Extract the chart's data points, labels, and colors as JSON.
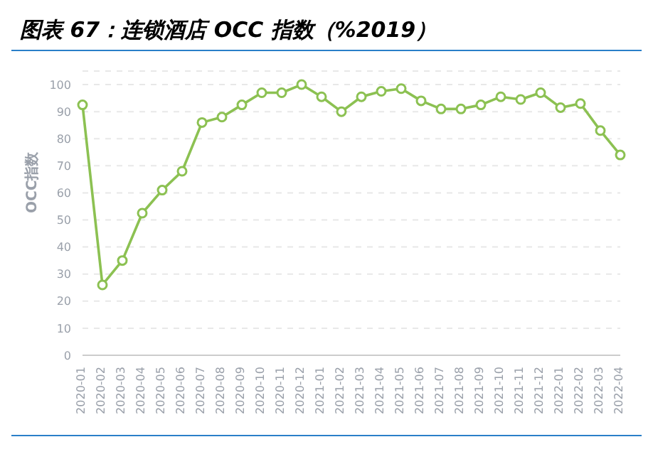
{
  "chart_data": {
    "type": "line",
    "title": "图表 67：连锁酒店 OCC 指数（%2019）",
    "ylabel": "OCC指数",
    "categories": [
      "2020-01",
      "2020-02",
      "2020-03",
      "2020-04",
      "2020-05",
      "2020-06",
      "2020-07",
      "2020-08",
      "2020-09",
      "2020-10",
      "2020-11",
      "2020-12",
      "2021-01",
      "2021-02",
      "2021-03",
      "2021-04",
      "2021-05",
      "2021-06",
      "2021-07",
      "2021-08",
      "2021-09",
      "2021-10",
      "2021-11",
      "2021-12",
      "2022-01",
      "2022-02",
      "2022-03",
      "2022-04"
    ],
    "series": [
      {
        "color": "#8cc152",
        "values": [
          92.5,
          26,
          35,
          52.5,
          61,
          68,
          86,
          88,
          92.5,
          97,
          97,
          100,
          95.5,
          90,
          95.5,
          97.5,
          98.5,
          94,
          91,
          91,
          92.5,
          95.5,
          94.5,
          97,
          91.5,
          93,
          83,
          74
        ]
      }
    ],
    "ylim": [
      0,
      105
    ],
    "yticks": [
      0,
      10,
      20,
      30,
      40,
      50,
      60,
      70,
      80,
      90,
      100
    ],
    "grid": "y",
    "marker": "circle",
    "line_style": "solid",
    "legend": false
  }
}
